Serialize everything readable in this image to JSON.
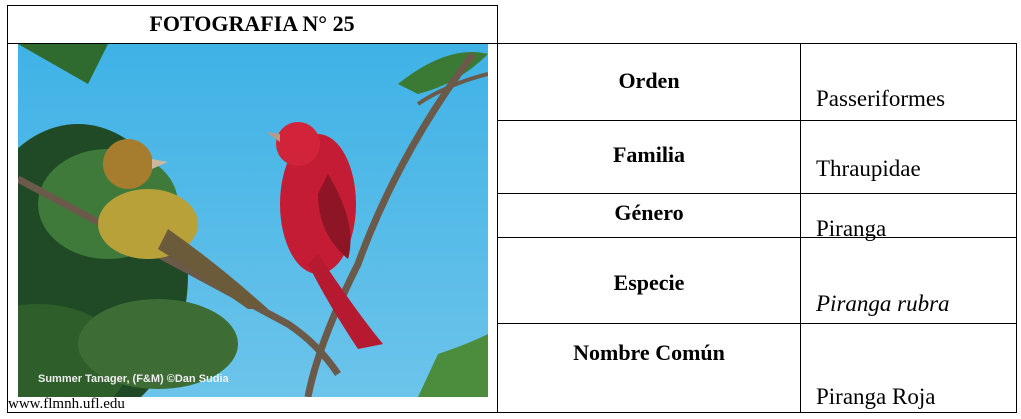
{
  "header": {
    "title": "FOTOGRAFIA  N° 25"
  },
  "photo": {
    "caption": "Summer Tanager, (F&M) ©Dan Sudia",
    "credit": "www.flmnh.ufl.edu"
  },
  "table": {
    "rows": [
      {
        "label": "Orden",
        "value": "Passeriformes"
      },
      {
        "label": "Familia",
        "value": "Thraupidae"
      },
      {
        "label": "Género",
        "value": "Piranga"
      },
      {
        "label": "Especie",
        "value": "Piranga rubra"
      },
      {
        "label": "Nombre Común",
        "value": "Piranga Roja"
      }
    ]
  }
}
